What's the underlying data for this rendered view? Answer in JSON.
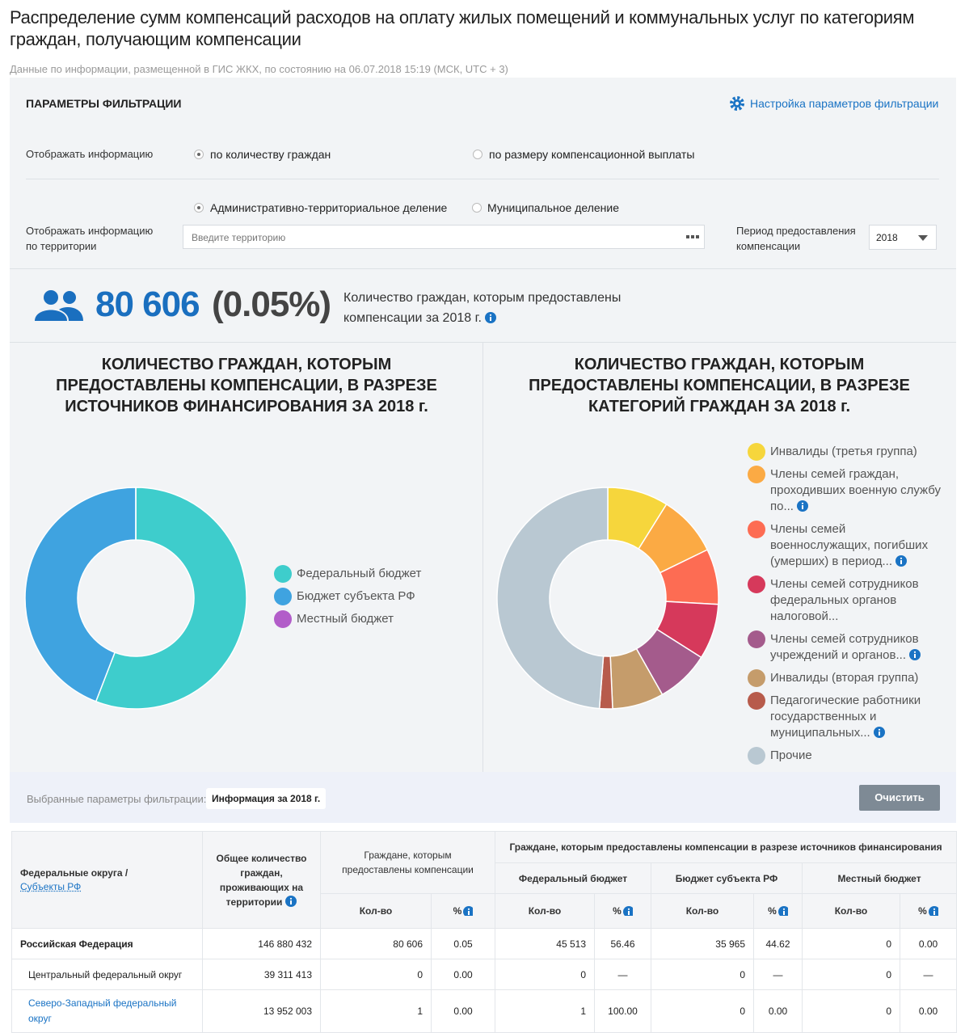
{
  "header": {
    "title": "Распределение сумм компенсаций расходов на оплату жилых помещений и коммунальных услуг по категориям граждан, получающим компенсации",
    "subtitle": "Данные по информации, размещенной в ГИС ЖКХ, по состоянию на 06.07.2018 15:19 (МСК, UTC + 3)"
  },
  "filter": {
    "heading": "ПАРАМЕТРЫ ФИЛЬТРАЦИИ",
    "settings_link": "Настройка параметров фильтрации",
    "display_label": "Отображать информацию",
    "option_count": "по количеству граждан",
    "option_payment": "по размеру компенсационной выплаты",
    "option_admin": "Административно-территориальное деление",
    "option_municipal": "Муниципальное деление",
    "territory_label": "Отображать информацию по территории",
    "territory_placeholder": "Введите территорию",
    "period_label": "Период предоставления компенсации",
    "period_value": "2018"
  },
  "summary": {
    "count": "80 606",
    "percent": "(0.05%)",
    "description": "Количество граждан, которым предоставлены компенсации за 2018 г."
  },
  "chart_data": [
    {
      "type": "donut",
      "title": "КОЛИЧЕСТВО ГРАЖДАН, КОТОРЫМ ПРЕДОСТАВЛЕНЫ КОМПЕНСАЦИИ, В РАЗРЕЗЕ ИСТОЧНИКОВ ФИНАНСИРОВАНИЯ ЗА 2018 г.",
      "categories": [
        "Федеральный бюджет",
        "Бюджет субъекта РФ",
        "Местный бюджет"
      ],
      "values": [
        45513,
        35965,
        0
      ],
      "colors": [
        "#3ecdcc",
        "#3fa3e0",
        "#b25dc9"
      ]
    },
    {
      "type": "donut",
      "title": "КОЛИЧЕСТВО ГРАЖДАН, КОТОРЫМ ПРЕДОСТАВЛЕНЫ КОМПЕНСАЦИИ, В РАЗРЕЗЕ КАТЕГОРИЙ ГРАЖДАН ЗА 2018 г.",
      "categories": [
        "Инвалиды (третья группа)",
        "Члены семей граждан, проходивших военную службу по...",
        "Члены семей военнослужащих, погибших (умерших) в период...",
        "Члены семей сотрудников федеральных органов налоговой...",
        "Члены семей сотрудников учреждений и органов...",
        "Инвалиды (вторая группа)",
        "Педагогические работники государственных и муниципальных...",
        "Прочие"
      ],
      "values": [
        8.9,
        8.9,
        8.1,
        8.1,
        7.8,
        7.5,
        1.9,
        48.8
      ],
      "colors": [
        "#f6d63c",
        "#fbaa44",
        "#fd6c53",
        "#d6395b",
        "#a45b8c",
        "#c59c6b",
        "#b75b4b",
        "#b9c8d2"
      ]
    }
  ],
  "selected": {
    "label": "Выбранные параметры фильтрации:",
    "tag": "Информация за 2018 г.",
    "clear_button": "Очистить"
  },
  "table": {
    "columns": {
      "district": "Федеральные округа /",
      "subjects_link": "Субъекты РФ",
      "total": "Общее количество граждан, проживающих на территории",
      "granted": "Граждане, которым предоставлены компенсации",
      "by_source": "Граждане, которым предоставлены компенсации в разрезе источников финансирования",
      "sources": [
        "Федеральный бюджет",
        "Бюджет субъекта РФ",
        "Местный бюджет"
      ],
      "count": "Кол-во",
      "percent": "%"
    },
    "rows": [
      [
        "Российская Федерация",
        "146 880 432",
        "80 606",
        "0.05",
        "45 513",
        "56.46",
        "35 965",
        "44.62",
        "0",
        "0.00"
      ],
      [
        "Центральный федеральный округ",
        "39 311 413",
        "0",
        "0.00",
        "0",
        "—",
        "0",
        "—",
        "0",
        "—"
      ],
      [
        "Северо-Западный федеральный округ",
        "13 952 003",
        "1",
        "0.00",
        "1",
        "100.00",
        "0",
        "0.00",
        "0",
        "0.00"
      ]
    ]
  }
}
